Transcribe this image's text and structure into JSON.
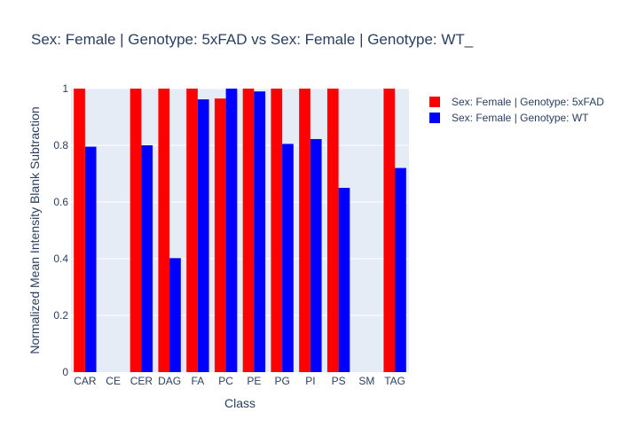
{
  "chart_data": {
    "type": "bar",
    "title": "Sex: Female | Genotype: 5xFAD vs Sex: Female | Genotype: WT_",
    "xlabel": "Class",
    "ylabel": "Normalized Mean Intensity Blank Subtraction",
    "ylim": [
      0,
      1
    ],
    "yticks": [
      0,
      0.2,
      0.4,
      0.6,
      0.8,
      1
    ],
    "ytick_labels": [
      "0",
      "0.2",
      "0.4",
      "0.6",
      "0.8",
      "1"
    ],
    "grid": true,
    "legend_position": "top-right",
    "categories": [
      "CAR",
      "CE",
      "CER",
      "DAG",
      "FA",
      "PC",
      "PE",
      "PG",
      "PI",
      "PS",
      "SM",
      "TAG"
    ],
    "series": [
      {
        "name": "Sex: Female | Genotype: 5xFAD",
        "color": "#ff0000",
        "values": [
          1.0,
          null,
          1.0,
          1.0,
          1.0,
          0.965,
          1.0,
          1.0,
          1.0,
          1.0,
          null,
          1.0
        ]
      },
      {
        "name": "Sex: Female | Genotype: WT",
        "color": "#0000ff",
        "values": [
          0.795,
          null,
          0.8,
          0.402,
          0.962,
          1.0,
          0.99,
          0.805,
          0.822,
          0.65,
          null,
          0.72
        ]
      }
    ]
  }
}
